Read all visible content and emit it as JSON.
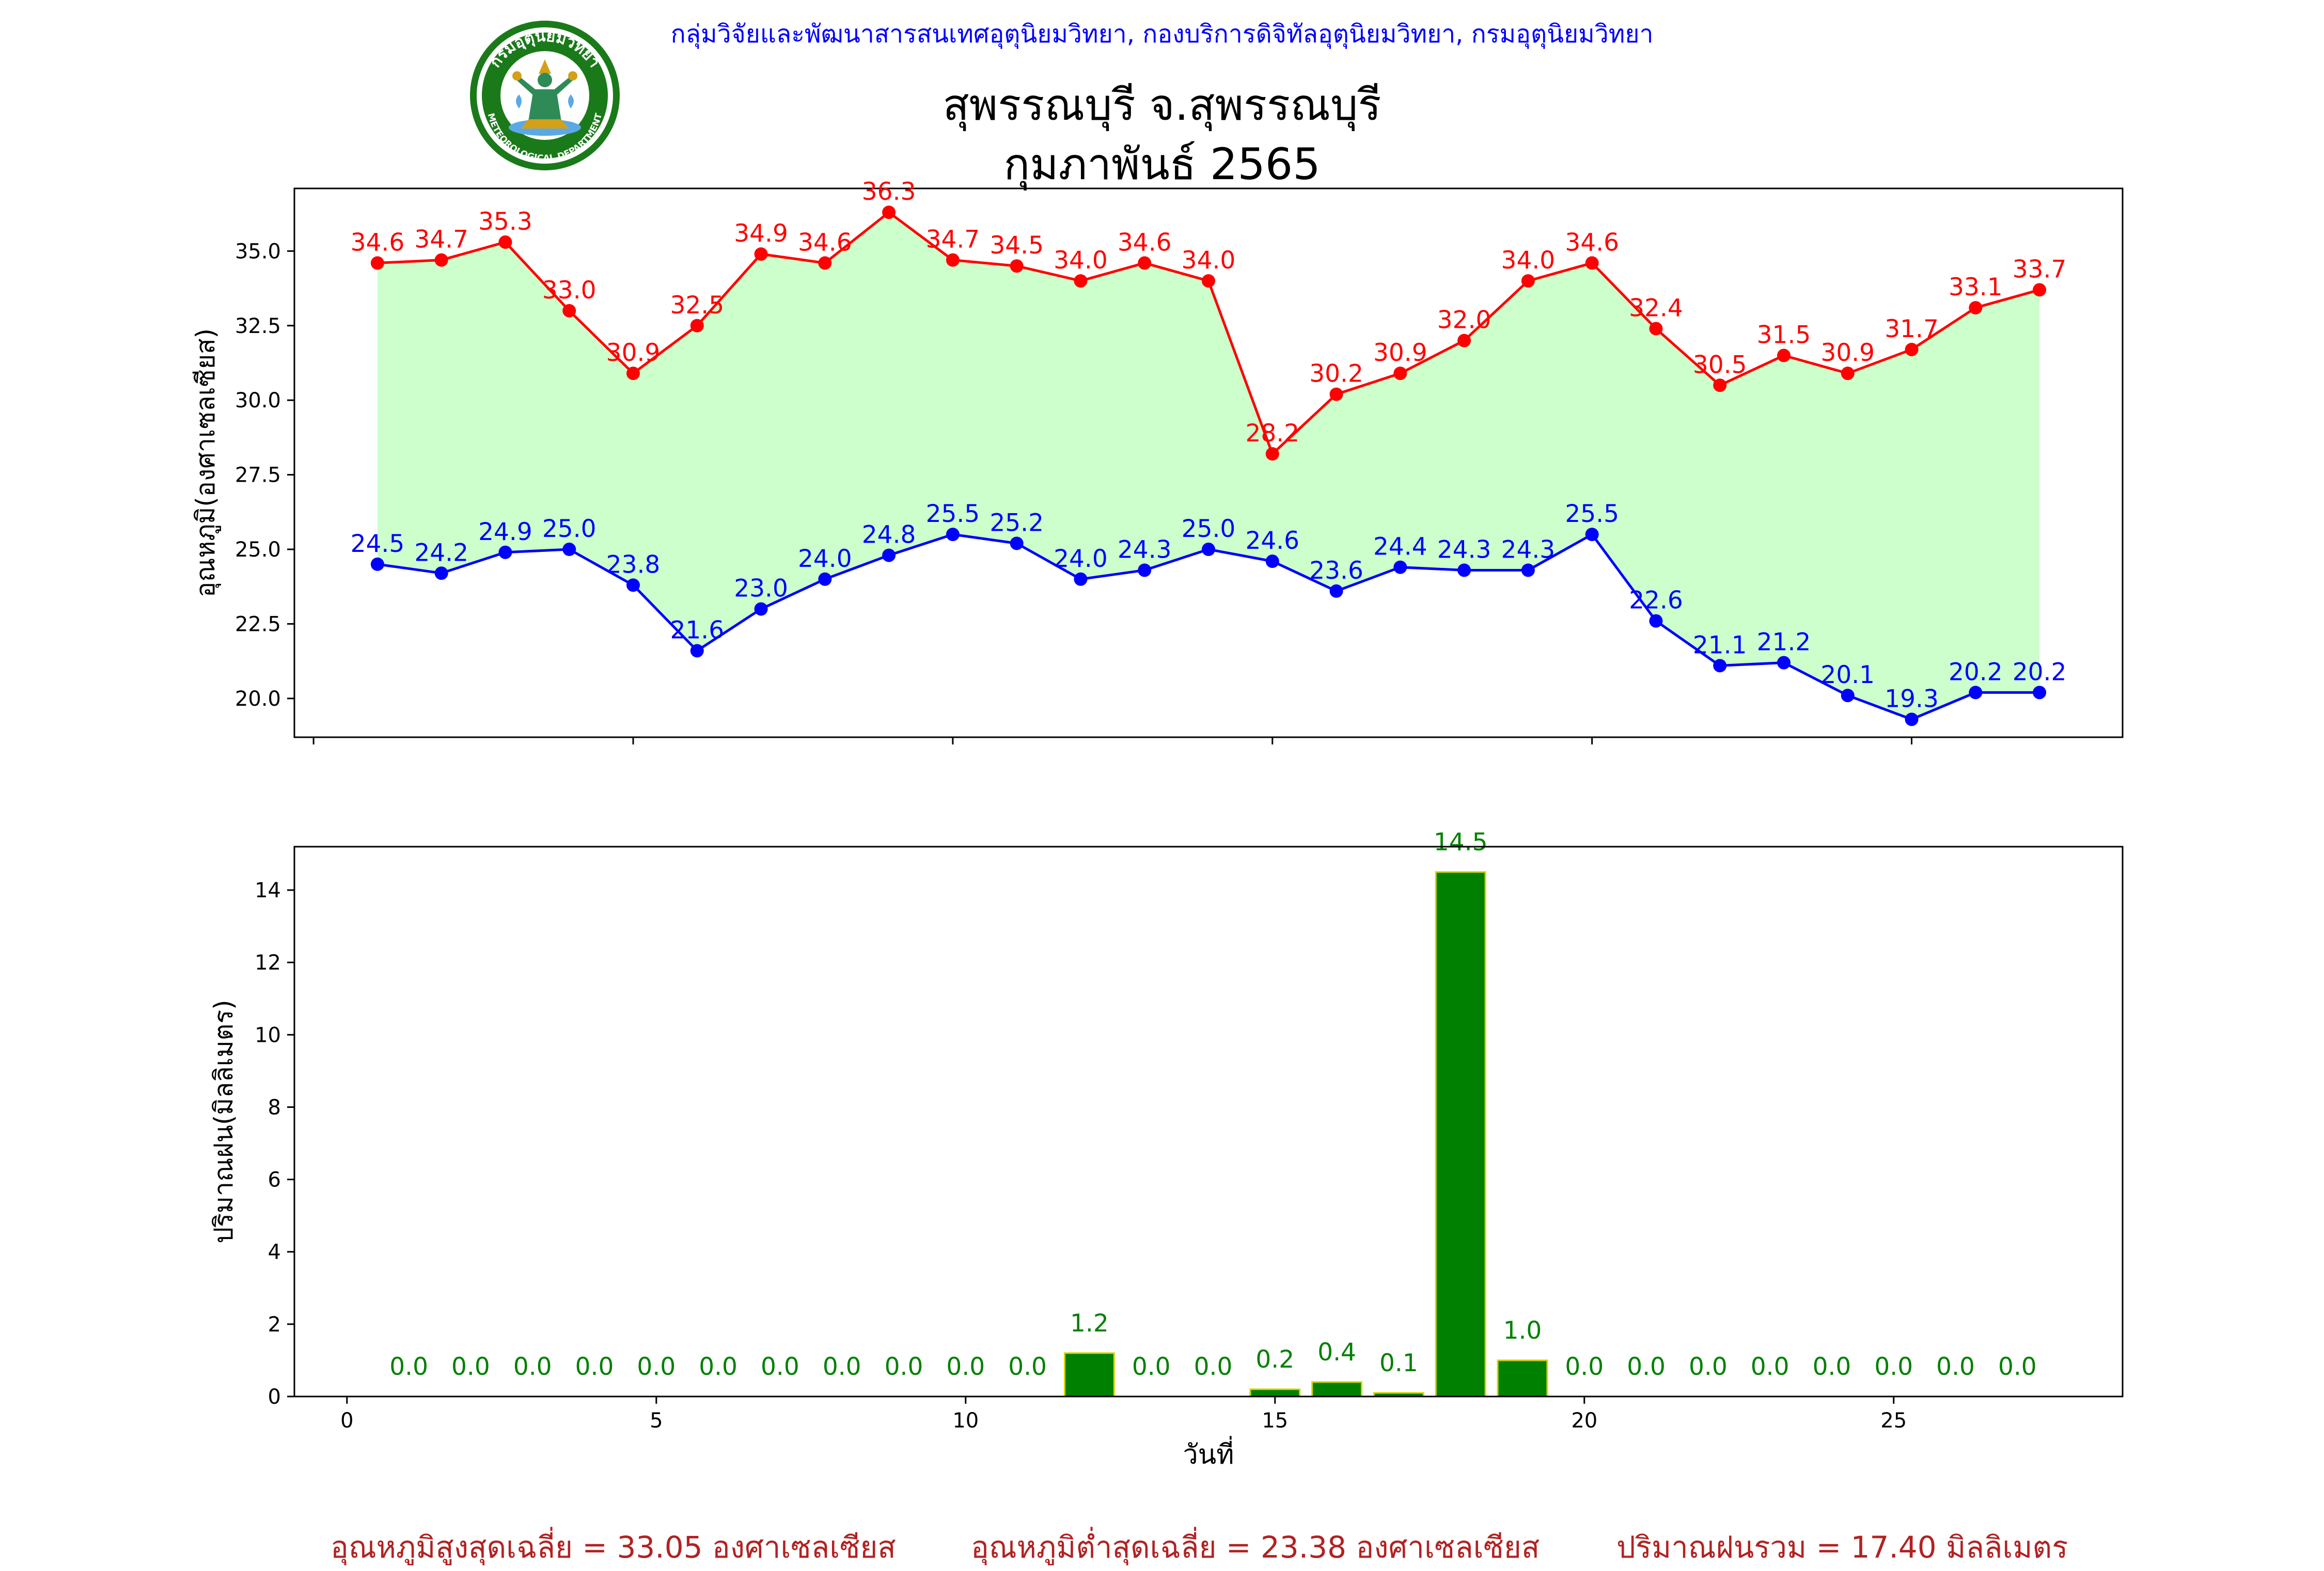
{
  "header": {
    "agency": "กลุ่มวิจัยและพัฒนาสารสนเทศอุตุนิยมวิทยา, กองบริการดิจิทัลอุตุนิยมวิทยา, กรมอุตุนิยมวิทยา",
    "station": "สุพรรณบุรี จ.สุพรรณบุรี",
    "period": "กุมภาพันธ์ 2565",
    "logo_text": "กรมอุตุนิยมวิทยา",
    "logo_text_en": "METEOROLOGICAL DEPARTMENT"
  },
  "colors": {
    "max": "#ff0000",
    "min": "#0000ff",
    "fill": "#ccffcc",
    "rain_bar": "#008000",
    "rain_edge": "#d4d400",
    "rain_label": "#008000",
    "footer": "#b22222"
  },
  "chart_data": [
    {
      "type": "line",
      "ylabel": "อุณหภูมิ(องศาเซลเซียส)",
      "xlabel": "",
      "xlim": [
        -0.3,
        28.3
      ],
      "ylim": [
        18.7,
        37.1
      ],
      "xticks": [
        0,
        5,
        10,
        15,
        20,
        25
      ],
      "yticks": [
        20.0,
        22.5,
        25.0,
        27.5,
        30.0,
        32.5,
        35.0
      ],
      "fill_between": true,
      "x": [
        1,
        2,
        3,
        4,
        5,
        6,
        7,
        8,
        9,
        10,
        11,
        12,
        13,
        14,
        15,
        16,
        17,
        18,
        19,
        20,
        21,
        22,
        23,
        24,
        25,
        26,
        27
      ],
      "series": [
        {
          "name": "",
          "role": "max",
          "values": [
            34.6,
            34.7,
            35.3,
            33.0,
            30.9,
            32.5,
            34.9,
            34.6,
            36.3,
            34.7,
            34.5,
            34.0,
            34.6,
            34.0,
            28.2,
            30.2,
            30.9,
            32.0,
            34.0,
            34.6,
            32.4,
            30.5,
            31.5,
            30.9,
            31.7,
            33.1,
            33.7
          ]
        },
        {
          "name": "",
          "role": "min",
          "values": [
            24.5,
            24.2,
            24.9,
            25.0,
            23.8,
            21.6,
            23.0,
            24.0,
            24.8,
            25.5,
            25.2,
            24.0,
            24.3,
            25.0,
            24.6,
            23.6,
            24.4,
            24.3,
            24.3,
            25.5,
            22.6,
            21.1,
            21.2,
            20.1,
            19.3,
            20.2,
            20.2
          ]
        }
      ]
    },
    {
      "type": "bar",
      "ylabel": "ปริมาณฝน(มิลลิเมตร)",
      "xlabel": "วันที่",
      "xlim": [
        -0.85,
        28.7
      ],
      "ylim": [
        0,
        15.2
      ],
      "xticks": [
        0,
        5,
        10,
        15,
        20,
        25
      ],
      "yticks": [
        0,
        2,
        4,
        6,
        8,
        10,
        12,
        14
      ],
      "x": [
        1,
        2,
        3,
        4,
        5,
        6,
        7,
        8,
        9,
        10,
        11,
        12,
        13,
        14,
        15,
        16,
        17,
        18,
        19,
        20,
        21,
        22,
        23,
        24,
        25,
        26,
        27
      ],
      "values": [
        0.0,
        0.0,
        0.0,
        0.0,
        0.0,
        0.0,
        0.0,
        0.0,
        0.0,
        0.0,
        0.0,
        1.2,
        0.0,
        0.0,
        0.2,
        0.4,
        0.1,
        14.5,
        1.0,
        0.0,
        0.0,
        0.0,
        0.0,
        0.0,
        0.0,
        0.0,
        0.0
      ]
    }
  ],
  "summary": {
    "max_avg": "อุณหภูมิสูงสุดเฉลี่ย = 33.05 องศาเซลเซียส",
    "min_avg": "อุณหภูมิต่ำสุดเฉลี่ย = 23.38 องศาเซลเซียส",
    "rain_total": "ปริมาณฝนรวม = 17.40 มิลลิเมตร"
  }
}
